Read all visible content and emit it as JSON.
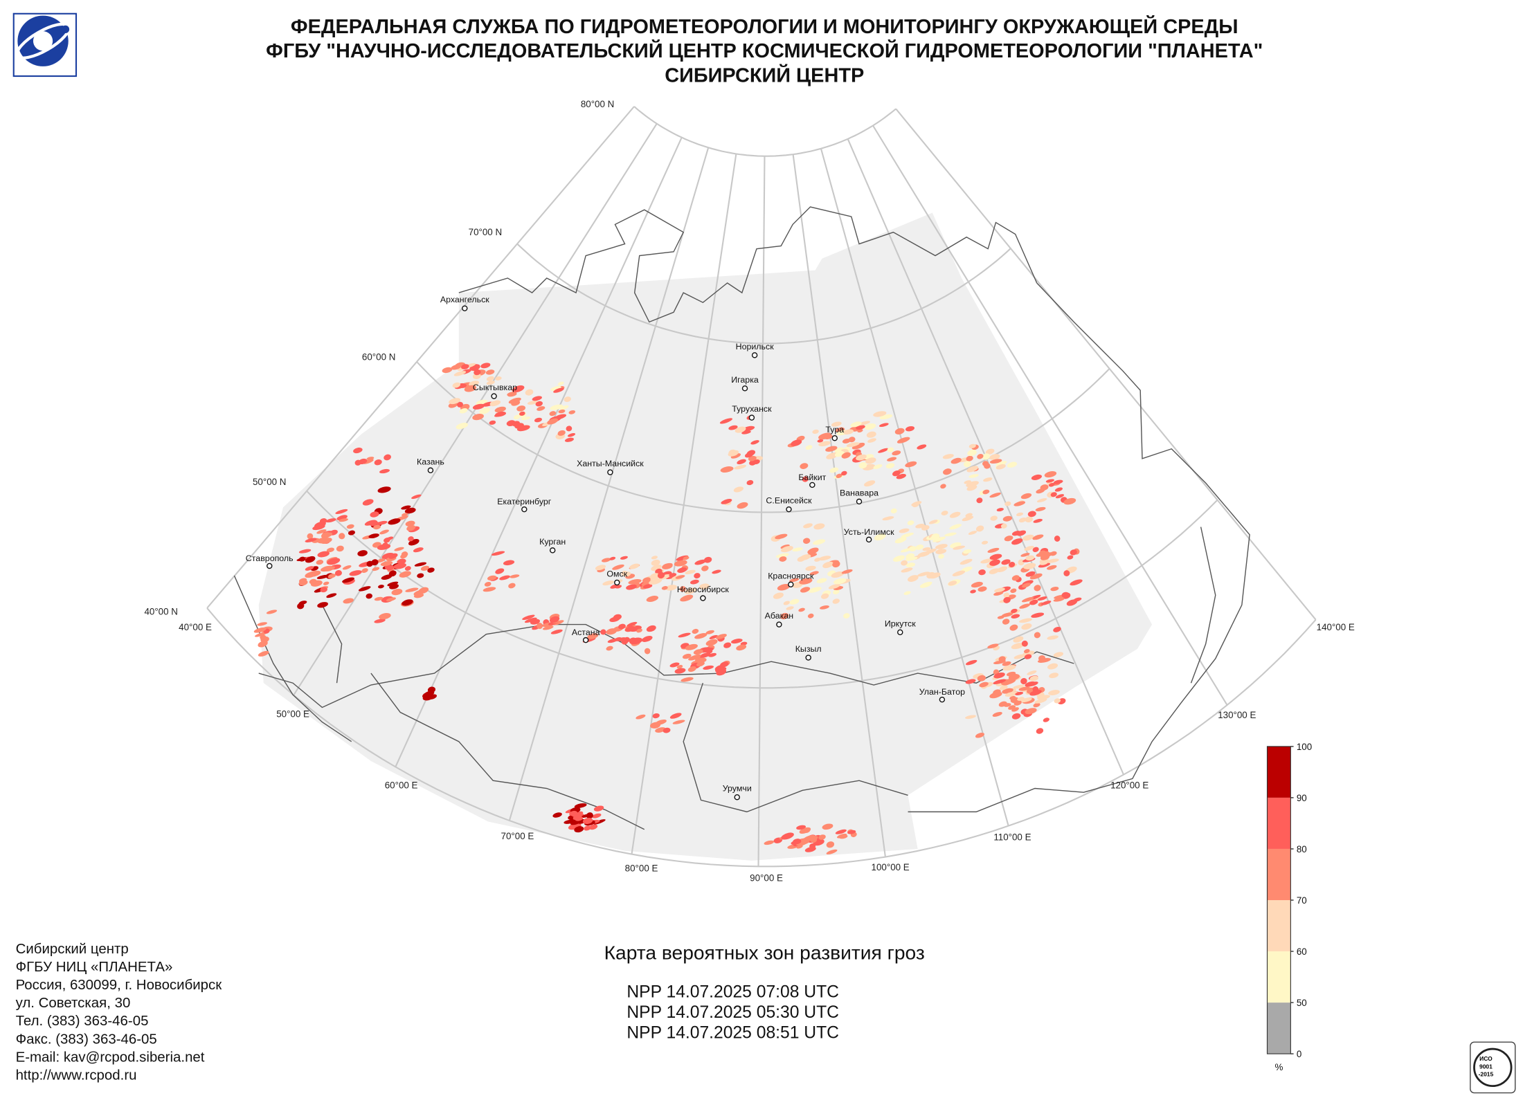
{
  "header": {
    "lines": [
      "ФЕДЕРАЛЬНАЯ СЛУЖБА ПО ГИДРОМЕТЕОРОЛОГИИ И МОНИТОРИНГУ ОКРУЖАЮЩЕЙ СРЕДЫ",
      "ФГБУ \"НАУЧНО-ИССЛЕДОВАТЕЛЬСКИЙ ЦЕНТР КОСМИЧЕСКОЙ ГИДРОМЕТЕОРОЛОГИИ \"ПЛАНЕТА\"",
      "СИБИРСКИЙ ЦЕНТР"
    ]
  },
  "map": {
    "parallels": [
      "80°00 N",
      "70°00 N",
      "60°00 N",
      "50°00 N",
      "40°00 N"
    ],
    "meridians": [
      "40°00 E",
      "50°00 E",
      "60°00 E",
      "70°00 E",
      "80°00 E",
      "90°00 E",
      "100°00 E",
      "110°00 E",
      "120°00 E",
      "130°00 E",
      "140°00 E"
    ],
    "cities": [
      "Архангельск",
      "Сыктывкар",
      "Казань",
      "Ханты-Мансийск",
      "Норильск",
      "Игарка",
      "Туруханск",
      "Тура",
      "Байкит",
      "Ванавара",
      "С.Енисейск",
      "Екатеринбург",
      "Усть-Илимск",
      "Курган",
      "Ставрополь",
      "Омск",
      "Новосибирск",
      "Красноярск",
      "Абакан",
      "Иркутск",
      "Астана",
      "Кызыл",
      "Улан-Батор",
      "Урумчи"
    ]
  },
  "colorbar": {
    "ticks": [
      0,
      50,
      60,
      70,
      80,
      90,
      100
    ],
    "colors": [
      "#a9a9a9",
      "#fff7c6",
      "#ffd9b8",
      "#ff8a70",
      "#ff5f5a",
      "#bb0000"
    ],
    "unit": "%"
  },
  "footer": {
    "contact": [
      "Сибирский центр",
      "ФГБУ НИЦ «ПЛАНЕТА»",
      "Россия, 630099, г. Новосибирск",
      "ул. Советская, 30",
      "Тел. (383) 363-46-05",
      "Факс. (383) 363-46-05",
      "E-mail: kav@rcpod.siberia.net",
      "http://www.rcpod.ru"
    ],
    "title": "Карта вероятных зон развития гроз",
    "passes": [
      "NPP 14.07.2025  07:08 UTC",
      "NPP 14.07.2025  05:30 UTC",
      "NPP 14.07.2025  08:51 UTC"
    ]
  },
  "iso_badge": [
    "ИСО",
    "9001",
    "-2015"
  ]
}
